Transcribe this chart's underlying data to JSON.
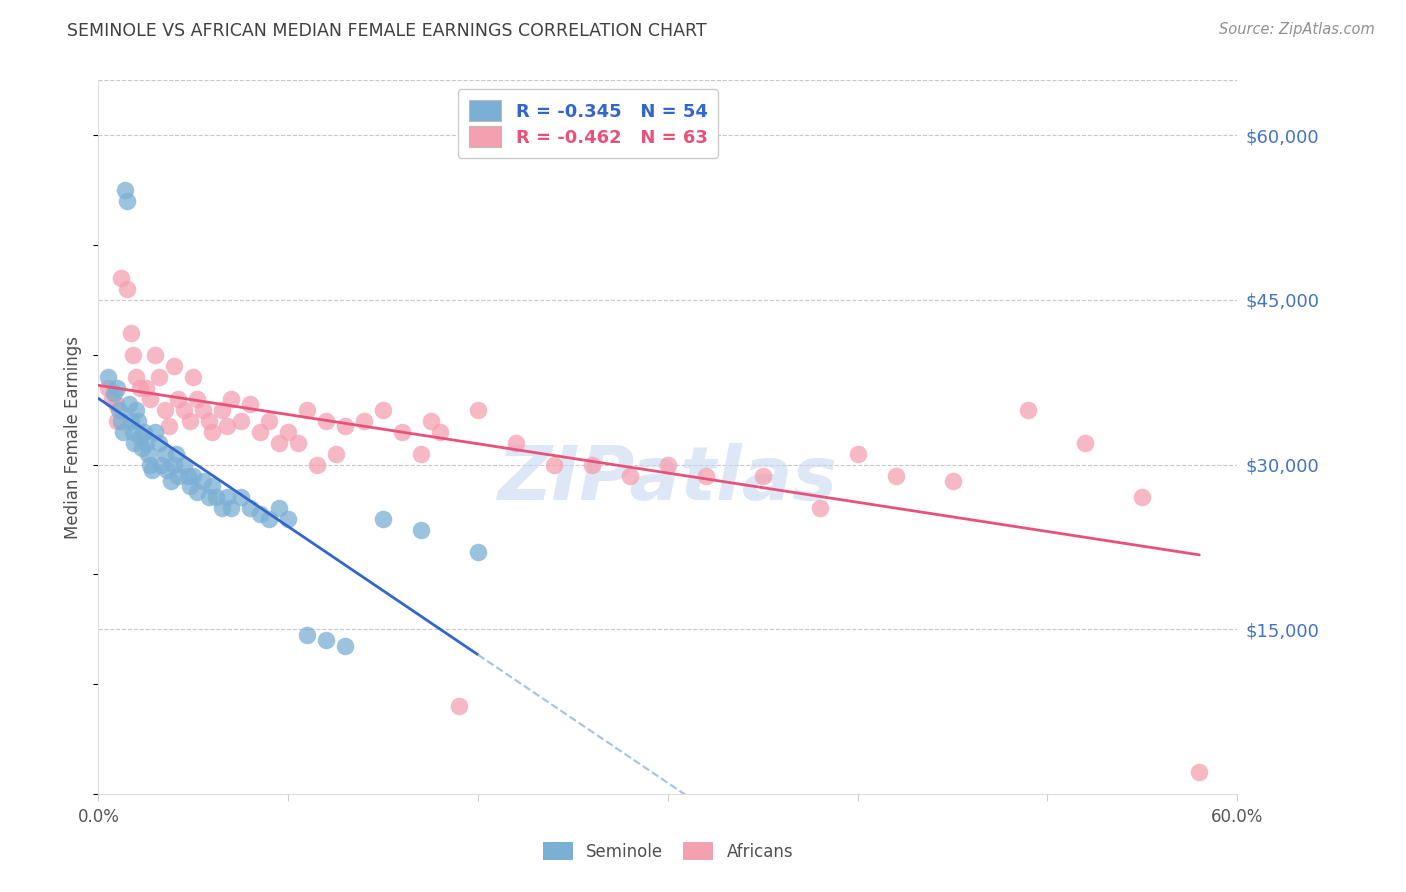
{
  "title": "SEMINOLE VS AFRICAN MEDIAN FEMALE EARNINGS CORRELATION CHART",
  "source": "Source: ZipAtlas.com",
  "ylabel": "Median Female Earnings",
  "ytick_labels": [
    "$15,000",
    "$30,000",
    "$45,000",
    "$60,000"
  ],
  "ytick_values": [
    15000,
    30000,
    45000,
    60000
  ],
  "ymin": 0,
  "ymax": 65000,
  "xmin": 0.0,
  "xmax": 0.6,
  "seminole_R": -0.345,
  "seminole_N": 54,
  "africans_R": -0.462,
  "africans_N": 63,
  "seminole_color": "#7bafd4",
  "africans_color": "#f4a0b0",
  "seminole_line_color": "#3366cc",
  "africans_line_color": "#e8527a",
  "dashed_line_color": "#a0c4e8",
  "title_color": "#404040",
  "source_color": "#909090",
  "ytick_color": "#4472c4",
  "background_color": "#ffffff",
  "grid_color": "#c8c8c8",
  "watermark_color": "#c8d8f0",
  "seminole_x": [
    0.005,
    0.008,
    0.01,
    0.011,
    0.012,
    0.013,
    0.014,
    0.015,
    0.016,
    0.017,
    0.018,
    0.019,
    0.02,
    0.021,
    0.022,
    0.023,
    0.024,
    0.025,
    0.026,
    0.027,
    0.028,
    0.03,
    0.032,
    0.033,
    0.035,
    0.036,
    0.038,
    0.04,
    0.041,
    0.042,
    0.045,
    0.047,
    0.048,
    0.05,
    0.052,
    0.055,
    0.058,
    0.06,
    0.062,
    0.065,
    0.068,
    0.07,
    0.075,
    0.08,
    0.085,
    0.09,
    0.095,
    0.1,
    0.11,
    0.12,
    0.13,
    0.15,
    0.17,
    0.2
  ],
  "seminole_y": [
    38000,
    36500,
    37000,
    35000,
    34000,
    33000,
    55000,
    54000,
    35500,
    34000,
    33000,
    32000,
    35000,
    34000,
    32500,
    31500,
    33000,
    32000,
    31000,
    30000,
    29500,
    33000,
    32000,
    30000,
    31000,
    29500,
    28500,
    30000,
    31000,
    29000,
    30000,
    29000,
    28000,
    29000,
    27500,
    28500,
    27000,
    28000,
    27000,
    26000,
    27000,
    26000,
    27000,
    26000,
    25500,
    25000,
    26000,
    25000,
    14500,
    14000,
    13500,
    25000,
    24000,
    22000
  ],
  "africans_x": [
    0.005,
    0.007,
    0.009,
    0.01,
    0.012,
    0.015,
    0.017,
    0.018,
    0.02,
    0.022,
    0.025,
    0.027,
    0.03,
    0.032,
    0.035,
    0.037,
    0.04,
    0.042,
    0.045,
    0.048,
    0.05,
    0.052,
    0.055,
    0.058,
    0.06,
    0.065,
    0.068,
    0.07,
    0.075,
    0.08,
    0.085,
    0.09,
    0.095,
    0.1,
    0.105,
    0.11,
    0.115,
    0.12,
    0.125,
    0.13,
    0.14,
    0.15,
    0.16,
    0.17,
    0.175,
    0.18,
    0.19,
    0.2,
    0.22,
    0.24,
    0.26,
    0.28,
    0.3,
    0.32,
    0.35,
    0.38,
    0.4,
    0.42,
    0.45,
    0.49,
    0.52,
    0.55,
    0.58
  ],
  "africans_y": [
    37000,
    36000,
    35500,
    34000,
    47000,
    46000,
    42000,
    40000,
    38000,
    37000,
    37000,
    36000,
    40000,
    38000,
    35000,
    33500,
    39000,
    36000,
    35000,
    34000,
    38000,
    36000,
    35000,
    34000,
    33000,
    35000,
    33500,
    36000,
    34000,
    35500,
    33000,
    34000,
    32000,
    33000,
    32000,
    35000,
    30000,
    34000,
    31000,
    33500,
    34000,
    35000,
    33000,
    31000,
    34000,
    33000,
    8000,
    35000,
    32000,
    30000,
    30000,
    29000,
    30000,
    29000,
    29000,
    26000,
    31000,
    29000,
    28500,
    35000,
    32000,
    27000,
    2000
  ]
}
